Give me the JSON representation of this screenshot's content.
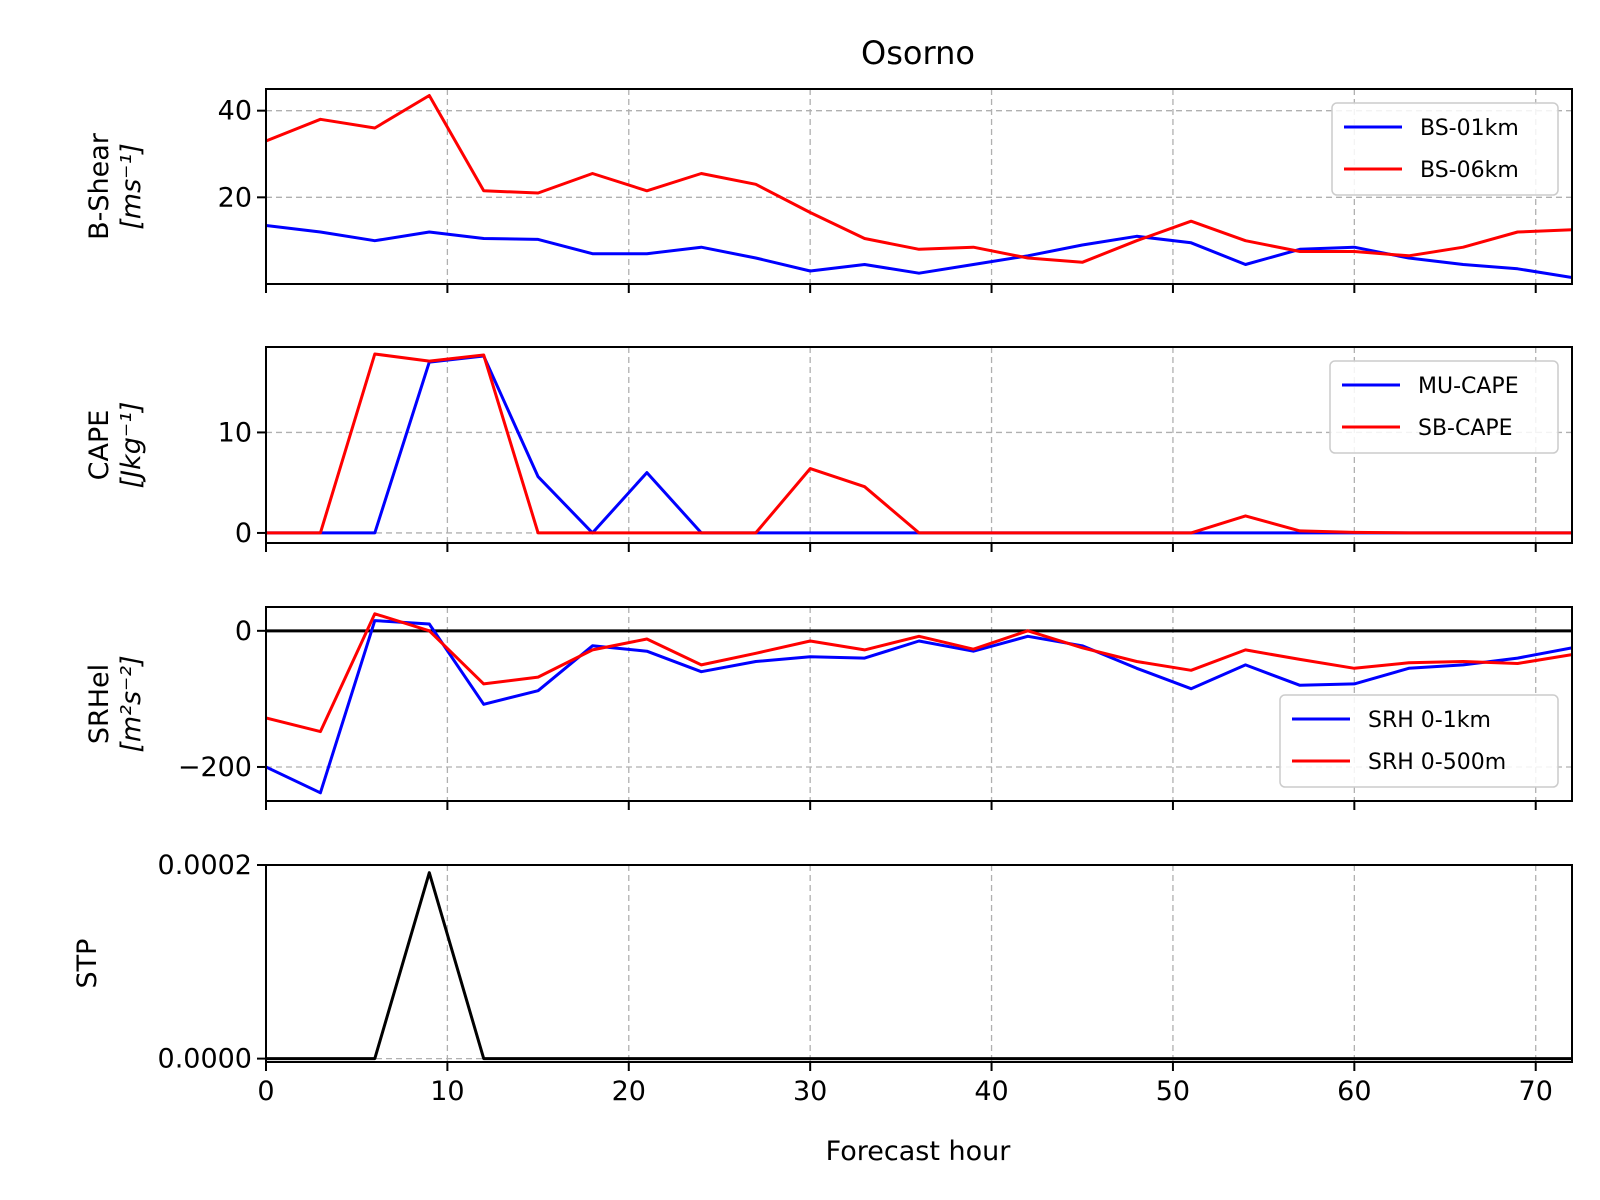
{
  "figure": {
    "title": "Osorno",
    "xlabel": "Forecast hour"
  },
  "chart_data": [
    {
      "type": "line",
      "ylabel": [
        "B-Shear",
        "[ms⁻¹]"
      ],
      "xlim": [
        0,
        72
      ],
      "ylim": [
        0,
        45
      ],
      "xticks": [
        0,
        10,
        20,
        30,
        40,
        50,
        60,
        70
      ],
      "yticks": [
        20,
        40
      ],
      "ytick_labels": [
        "20",
        "40"
      ],
      "grid": true,
      "legend": "top-right",
      "x": [
        0,
        3,
        6,
        9,
        12,
        15,
        18,
        21,
        24,
        27,
        30,
        33,
        36,
        39,
        42,
        45,
        48,
        51,
        54,
        57,
        60,
        63,
        66,
        69,
        72
      ],
      "series": [
        {
          "name": "BS-01km",
          "color": "#0000ff",
          "values": [
            13.5,
            12,
            10,
            12,
            10.5,
            10.3,
            7,
            7,
            8.5,
            6,
            3,
            4.5,
            2.5,
            4.5,
            6.5,
            9,
            11,
            9.5,
            4.5,
            8,
            8.5,
            6,
            4.5,
            3.5,
            1.5
          ]
        },
        {
          "name": "BS-06km",
          "color": "#ff0000",
          "values": [
            33,
            38,
            36,
            43.5,
            21.5,
            21,
            25.5,
            21.5,
            25.5,
            23,
            16.5,
            10.5,
            8,
            8.5,
            6,
            5,
            10,
            14.5,
            10,
            7.5,
            7.5,
            6.5,
            8.5,
            12,
            12.5
          ]
        }
      ]
    },
    {
      "type": "line",
      "ylabel": [
        "CAPE",
        "[Jkg⁻¹]"
      ],
      "xlim": [
        0,
        72
      ],
      "ylim": [
        -1,
        18.5
      ],
      "xticks": [
        0,
        10,
        20,
        30,
        40,
        50,
        60,
        70
      ],
      "yticks": [
        0,
        10
      ],
      "ytick_labels": [
        "0",
        "10"
      ],
      "grid": true,
      "legend": "top-right",
      "x": [
        0,
        3,
        6,
        9,
        12,
        15,
        18,
        21,
        24,
        27,
        30,
        33,
        36,
        39,
        42,
        45,
        48,
        51,
        54,
        57,
        60,
        63,
        66,
        69,
        72
      ],
      "series": [
        {
          "name": "MU-CAPE",
          "color": "#0000ff",
          "values": [
            0,
            0,
            0,
            17,
            17.6,
            5.6,
            0,
            6,
            0,
            0,
            0,
            0,
            0,
            0,
            0,
            0,
            0,
            0,
            0,
            0,
            0,
            0,
            0,
            0,
            0
          ]
        },
        {
          "name": "SB-CAPE",
          "color": "#ff0000",
          "values": [
            0,
            0,
            17.8,
            17.1,
            17.7,
            0,
            0,
            0,
            0,
            0,
            6.4,
            4.6,
            0,
            0,
            0,
            0,
            0,
            0,
            1.7,
            0.2,
            0.05,
            0,
            0,
            0,
            0
          ]
        }
      ]
    },
    {
      "type": "line",
      "ylabel": [
        "SRHel",
        "[m²s⁻²]"
      ],
      "xlim": [
        0,
        72
      ],
      "ylim": [
        -250,
        35
      ],
      "xticks": [
        0,
        10,
        20,
        30,
        40,
        50,
        60,
        70
      ],
      "yticks": [
        -200,
        0
      ],
      "ytick_labels": [
        "−200",
        "0"
      ],
      "grid": true,
      "zero_line": true,
      "legend": "lower-right",
      "x": [
        0,
        3,
        6,
        9,
        12,
        15,
        18,
        21,
        24,
        27,
        30,
        33,
        36,
        39,
        42,
        45,
        48,
        51,
        54,
        57,
        60,
        63,
        66,
        69,
        72
      ],
      "series": [
        {
          "name": "SRH 0-1km",
          "color": "#0000ff",
          "values": [
            -200,
            -238,
            15,
            10,
            -108,
            -88,
            -22,
            -30,
            -60,
            -45,
            -38,
            -40,
            -15,
            -30,
            -8,
            -22,
            -55,
            -85,
            -50,
            -80,
            -78,
            -55,
            -50,
            -40,
            -25
          ]
        },
        {
          "name": "SRH 0-500m",
          "color": "#ff0000",
          "values": [
            -128,
            -148,
            25,
            0,
            -78,
            -68,
            -28,
            -12,
            -50,
            -33,
            -15,
            -28,
            -8,
            -27,
            0,
            -25,
            -45,
            -58,
            -28,
            -42,
            -55,
            -47,
            -45,
            -48,
            -35
          ]
        }
      ]
    },
    {
      "type": "line",
      "ylabel": [
        "STP"
      ],
      "xlim": [
        0,
        72
      ],
      "ylim": [
        -3.5e-06,
        0.0002
      ],
      "xticks": [
        0,
        10,
        20,
        30,
        40,
        50,
        60,
        70
      ],
      "xtick_labels": [
        "0",
        "10",
        "20",
        "30",
        "40",
        "50",
        "60",
        "70"
      ],
      "yticks": [
        0,
        0.0002
      ],
      "ytick_labels": [
        "0.0000",
        "0.0002"
      ],
      "grid": true,
      "legend": "none",
      "x": [
        0,
        3,
        6,
        9,
        12,
        15,
        18,
        21,
        24,
        27,
        30,
        33,
        36,
        39,
        42,
        45,
        48,
        51,
        54,
        57,
        60,
        63,
        66,
        69,
        72
      ],
      "series": [
        {
          "color": "#000000",
          "values": [
            0,
            0,
            0,
            0.000192,
            0,
            0,
            0,
            0,
            0,
            0,
            0,
            0,
            0,
            0,
            0,
            0,
            0,
            0,
            0,
            0,
            0,
            0,
            0,
            0,
            0
          ]
        }
      ]
    }
  ]
}
